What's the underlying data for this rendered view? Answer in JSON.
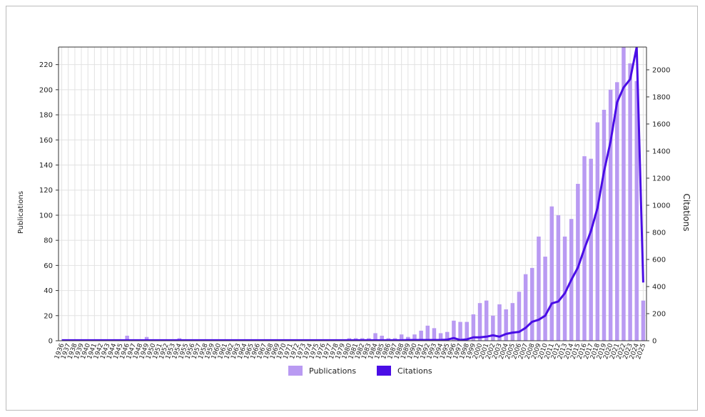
{
  "chart_data": {
    "type": "bar-line",
    "categories": [
      "1936",
      "1937",
      "1938",
      "1939",
      "1940",
      "1941",
      "1942",
      "1943",
      "1944",
      "1945",
      "1946",
      "1947",
      "1948",
      "1949",
      "1950",
      "1951",
      "1952",
      "1953",
      "1954",
      "1955",
      "1956",
      "1957",
      "1958",
      "1959",
      "1960",
      "1961",
      "1962",
      "1963",
      "1964",
      "1965",
      "1966",
      "1967",
      "1968",
      "1969",
      "1970",
      "1971",
      "1972",
      "1973",
      "1974",
      "1975",
      "1976",
      "1977",
      "1978",
      "1979",
      "1980",
      "1981",
      "1982",
      "1983",
      "1984",
      "1985",
      "1986",
      "1987",
      "1988",
      "1989",
      "1990",
      "1991",
      "1992",
      "1993",
      "1994",
      "1995",
      "1996",
      "1997",
      "1998",
      "1999",
      "2000",
      "2001",
      "2002",
      "2003",
      "2004",
      "2005",
      "2006",
      "2007",
      "2008",
      "2009",
      "2010",
      "2011",
      "2012",
      "2013",
      "2014",
      "2015",
      "2016",
      "2017",
      "2018",
      "2019",
      "2020",
      "2021",
      "2022",
      "2023",
      "2024",
      "2025"
    ],
    "series": [
      {
        "name": "Publications",
        "type": "bar",
        "color": "#b99af2",
        "values": [
          0,
          0,
          0,
          0,
          0,
          0,
          0,
          0,
          0,
          0,
          4,
          0,
          1,
          3,
          1,
          0,
          1,
          0,
          2,
          1,
          0,
          1,
          0,
          0,
          1,
          0,
          1,
          0,
          0,
          0,
          0,
          0,
          0,
          1,
          0,
          1,
          0,
          0,
          0,
          1,
          0,
          0,
          0,
          1,
          2,
          2,
          2,
          2,
          6,
          4,
          2,
          2,
          5,
          3,
          5,
          8,
          12,
          10,
          6,
          7,
          16,
          15,
          15,
          21,
          30,
          32,
          20,
          29,
          25,
          30,
          39,
          53,
          58,
          83,
          67,
          107,
          100,
          83,
          97,
          125,
          147,
          145,
          174,
          184,
          200,
          206,
          234,
          221,
          207,
          32
        ]
      },
      {
        "name": "Citations",
        "type": "line",
        "axis": "y2",
        "color": "#4a0de6",
        "values": [
          3,
          3,
          3,
          3,
          3,
          3,
          3,
          3,
          3,
          3,
          3,
          3,
          3,
          3,
          3,
          3,
          3,
          3,
          3,
          3,
          3,
          3,
          3,
          3,
          3,
          3,
          3,
          3,
          3,
          3,
          3,
          3,
          3,
          3,
          3,
          3,
          3,
          3,
          3,
          3,
          3,
          3,
          3,
          3,
          3,
          3,
          3,
          3,
          3,
          3,
          3,
          3,
          3,
          5,
          5,
          5,
          5,
          5,
          5,
          8,
          20,
          5,
          10,
          25,
          25,
          30,
          40,
          30,
          50,
          60,
          65,
          95,
          140,
          155,
          185,
          275,
          290,
          350,
          450,
          540,
          680,
          810,
          980,
          1250,
          1470,
          1760,
          1870,
          1930,
          2168,
          430
        ]
      }
    ],
    "ylabel": "Publications",
    "y2label": "Citations",
    "ylim": [
      0,
      234
    ],
    "yticks": [
      0,
      20,
      40,
      60,
      80,
      100,
      120,
      140,
      160,
      180,
      200,
      220
    ],
    "y2lim": [
      0,
      2168
    ],
    "y2ticks": [
      0,
      200,
      400,
      600,
      800,
      1000,
      1200,
      1400,
      1600,
      1800,
      2000
    ],
    "grid": true,
    "legend": "bottom"
  }
}
